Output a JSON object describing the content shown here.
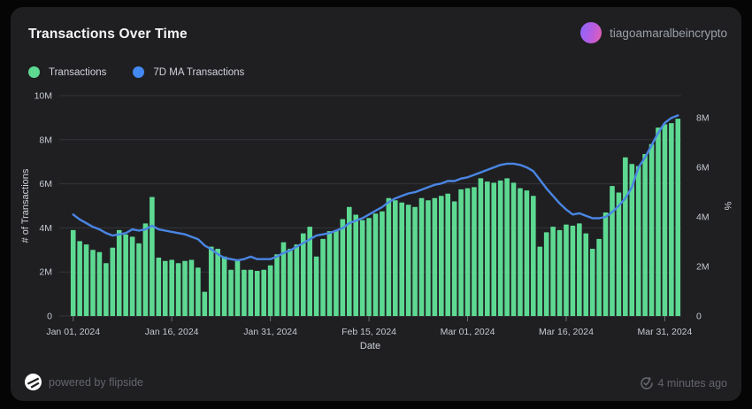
{
  "header": {
    "title": "Transactions Over Time",
    "user": "tiagoamaralbeincrypto"
  },
  "legend": [
    {
      "label": "Transactions",
      "color": "#5dd992"
    },
    {
      "label": "7D MA Transactions",
      "color": "#4389f2"
    }
  ],
  "footer": {
    "powered_by": "powered by flipside",
    "updated": "4 minutes ago"
  },
  "chart_data": {
    "type": "bar",
    "title": "Transactions Over Time",
    "xlabel": "Date",
    "values_unit": "millions",
    "grid": true,
    "legend_position": "top-left",
    "left_axis": {
      "title": "# of Transactions",
      "max": 10,
      "ticks": [
        {
          "v": 0,
          "label": "0"
        },
        {
          "v": 2,
          "label": "2M"
        },
        {
          "v": 4,
          "label": "4M"
        },
        {
          "v": 6,
          "label": "6M"
        },
        {
          "v": 8,
          "label": "8M"
        },
        {
          "v": 10,
          "label": "10M"
        }
      ]
    },
    "right_axis": {
      "title": "%",
      "max": 8.9,
      "ticks": [
        {
          "v": 0,
          "label": "0"
        },
        {
          "v": 2,
          "label": "2M"
        },
        {
          "v": 4,
          "label": "4M"
        },
        {
          "v": 6,
          "label": "6M"
        },
        {
          "v": 8,
          "label": "8M"
        }
      ]
    },
    "x_ticks": [
      {
        "index": 0,
        "label": "Jan 01, 2024"
      },
      {
        "index": 15,
        "label": "Jan 16, 2024"
      },
      {
        "index": 30,
        "label": "Jan 31, 2024"
      },
      {
        "index": 45,
        "label": "Feb 15, 2024"
      },
      {
        "index": 60,
        "label": "Mar 01, 2024"
      },
      {
        "index": 75,
        "label": "Mar 16, 2024"
      },
      {
        "index": 90,
        "label": "Mar 31, 2024"
      }
    ],
    "categories": [
      "2024-01-01",
      "2024-01-02",
      "2024-01-03",
      "2024-01-04",
      "2024-01-05",
      "2024-01-06",
      "2024-01-07",
      "2024-01-08",
      "2024-01-09",
      "2024-01-10",
      "2024-01-11",
      "2024-01-12",
      "2024-01-13",
      "2024-01-14",
      "2024-01-15",
      "2024-01-16",
      "2024-01-17",
      "2024-01-18",
      "2024-01-19",
      "2024-01-20",
      "2024-01-21",
      "2024-01-22",
      "2024-01-23",
      "2024-01-24",
      "2024-01-25",
      "2024-01-26",
      "2024-01-27",
      "2024-01-28",
      "2024-01-29",
      "2024-01-30",
      "2024-01-31",
      "2024-02-01",
      "2024-02-02",
      "2024-02-03",
      "2024-02-04",
      "2024-02-05",
      "2024-02-06",
      "2024-02-07",
      "2024-02-08",
      "2024-02-09",
      "2024-02-10",
      "2024-02-11",
      "2024-02-12",
      "2024-02-13",
      "2024-02-14",
      "2024-02-15",
      "2024-02-16",
      "2024-02-17",
      "2024-02-18",
      "2024-02-19",
      "2024-02-20",
      "2024-02-21",
      "2024-02-22",
      "2024-02-23",
      "2024-02-24",
      "2024-02-25",
      "2024-02-26",
      "2024-02-27",
      "2024-02-28",
      "2024-02-29",
      "2024-03-01",
      "2024-03-02",
      "2024-03-03",
      "2024-03-04",
      "2024-03-05",
      "2024-03-06",
      "2024-03-07",
      "2024-03-08",
      "2024-03-09",
      "2024-03-10",
      "2024-03-11",
      "2024-03-12",
      "2024-03-13",
      "2024-03-14",
      "2024-03-15",
      "2024-03-16",
      "2024-03-17",
      "2024-03-18",
      "2024-03-19",
      "2024-03-20",
      "2024-03-21",
      "2024-03-22",
      "2024-03-23",
      "2024-03-24",
      "2024-03-25",
      "2024-03-26",
      "2024-03-27",
      "2024-03-28",
      "2024-03-29",
      "2024-03-30",
      "2024-03-31",
      "2024-04-01",
      "2024-04-02"
    ],
    "series": [
      {
        "name": "Transactions",
        "type": "bar",
        "axis": "left",
        "color": "#5dd992",
        "values": [
          3.9,
          3.4,
          3.25,
          3.0,
          2.9,
          2.4,
          3.1,
          3.9,
          3.7,
          3.6,
          3.3,
          4.2,
          5.4,
          2.65,
          2.5,
          2.55,
          2.4,
          2.5,
          2.55,
          2.2,
          1.1,
          3.15,
          3.05,
          2.7,
          2.1,
          2.55,
          2.1,
          2.1,
          2.05,
          2.1,
          2.3,
          2.8,
          3.35,
          3.05,
          3.25,
          3.75,
          4.05,
          2.7,
          3.5,
          3.85,
          3.9,
          4.4,
          4.95,
          4.6,
          4.35,
          4.45,
          4.65,
          4.75,
          5.35,
          5.25,
          5.15,
          5.05,
          4.95,
          5.35,
          5.25,
          5.35,
          5.45,
          5.55,
          5.2,
          5.75,
          5.8,
          5.85,
          6.25,
          6.1,
          6.05,
          6.15,
          6.25,
          6.05,
          5.8,
          5.7,
          5.45,
          3.15,
          3.8,
          4.05,
          3.9,
          4.15,
          4.1,
          4.2,
          3.75,
          3.05,
          3.5,
          4.7,
          5.9,
          5.6,
          7.2,
          6.9,
          6.8,
          7.35,
          7.8,
          8.55,
          8.7,
          8.75,
          8.95
        ]
      },
      {
        "name": "7D MA Transactions",
        "type": "line",
        "axis": "right",
        "color": "#4a86e4",
        "values": [
          4.1,
          3.9,
          3.75,
          3.6,
          3.5,
          3.35,
          3.25,
          3.3,
          3.35,
          3.5,
          3.45,
          3.5,
          3.65,
          3.5,
          3.45,
          3.4,
          3.35,
          3.3,
          3.2,
          3.1,
          2.85,
          2.7,
          2.5,
          2.35,
          2.3,
          2.25,
          2.3,
          2.4,
          2.3,
          2.3,
          2.3,
          2.4,
          2.55,
          2.65,
          2.8,
          2.95,
          3.1,
          3.25,
          3.3,
          3.35,
          3.45,
          3.55,
          3.75,
          3.85,
          3.95,
          4.1,
          4.25,
          4.4,
          4.6,
          4.75,
          4.85,
          4.95,
          5.0,
          5.1,
          5.2,
          5.3,
          5.35,
          5.45,
          5.45,
          5.55,
          5.6,
          5.7,
          5.8,
          5.9,
          6.0,
          6.1,
          6.15,
          6.15,
          6.1,
          6.0,
          5.85,
          5.5,
          5.15,
          4.85,
          4.55,
          4.3,
          4.1,
          4.15,
          4.05,
          3.95,
          3.95,
          4.0,
          4.2,
          4.45,
          4.75,
          5.2,
          6.0,
          6.4,
          6.9,
          7.4,
          7.8,
          8.0,
          8.1
        ]
      }
    ],
    "style": {
      "grid_color": "#34353b",
      "tick_text_color": "#c4c9d0",
      "axis_title_color": "#ccd0d7",
      "tick_mark_color": "#6b6e75"
    }
  }
}
